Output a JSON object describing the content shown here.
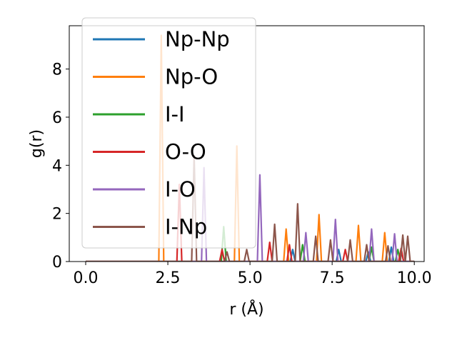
{
  "chart_data": {
    "type": "line",
    "xlabel": "r (Å)",
    "ylabel": "g(r)",
    "xlim": [
      -0.5,
      10.3
    ],
    "ylim": [
      0,
      9.8
    ],
    "xticks": [
      0.0,
      2.5,
      5.0,
      7.5,
      10.0
    ],
    "xtick_labels": [
      "0.0",
      "2.5",
      "5.0",
      "7.5",
      "10.0"
    ],
    "yticks": [
      0,
      2,
      4,
      6,
      8
    ],
    "ytick_labels": [
      "0",
      "2",
      "4",
      "6",
      "8"
    ],
    "grid": false,
    "legend_position": "top-left",
    "series": [
      {
        "name": "Np-Np",
        "color": "#1f77b4",
        "peaks": [
          [
            6.3,
            0.5
          ],
          [
            7.7,
            0.5
          ],
          [
            8.6,
            0.4
          ],
          [
            9.3,
            0.6
          ],
          [
            9.6,
            0.5
          ]
        ]
      },
      {
        "name": "Np-O",
        "color": "#ff7f0e",
        "peaks": [
          [
            2.3,
            9.4
          ],
          [
            4.6,
            4.8
          ],
          [
            6.1,
            1.35
          ],
          [
            7.1,
            1.95
          ],
          [
            8.3,
            1.5
          ],
          [
            9.1,
            1.2
          ]
        ]
      },
      {
        "name": "I-I",
        "color": "#2ca02c",
        "peaks": [
          [
            4.2,
            1.45
          ],
          [
            6.6,
            0.7
          ],
          [
            8.7,
            0.6
          ],
          [
            9.5,
            0.5
          ]
        ]
      },
      {
        "name": "O-O",
        "color": "#d62728",
        "peaks": [
          [
            2.85,
            3.2
          ],
          [
            4.15,
            0.5
          ],
          [
            5.6,
            0.8
          ],
          [
            6.2,
            0.7
          ],
          [
            7.9,
            0.5
          ],
          [
            9.6,
            0.55
          ]
        ]
      },
      {
        "name": "I-O",
        "color": "#9467bd",
        "peaks": [
          [
            3.6,
            3.9
          ],
          [
            5.3,
            3.6
          ],
          [
            6.7,
            1.2
          ],
          [
            7.6,
            1.75
          ],
          [
            8.7,
            1.35
          ],
          [
            9.4,
            1.15
          ]
        ]
      },
      {
        "name": "I-Np",
        "color": "#8c564b",
        "peaks": [
          [
            3.3,
            4.4
          ],
          [
            4.3,
            0.4
          ],
          [
            4.9,
            0.5
          ],
          [
            5.75,
            1.55
          ],
          [
            6.45,
            2.4
          ],
          [
            7.0,
            1.05
          ],
          [
            7.45,
            0.9
          ],
          [
            8.05,
            0.9
          ],
          [
            8.55,
            0.7
          ],
          [
            9.2,
            0.65
          ],
          [
            9.65,
            1.1
          ],
          [
            9.8,
            1.05
          ]
        ]
      }
    ]
  }
}
